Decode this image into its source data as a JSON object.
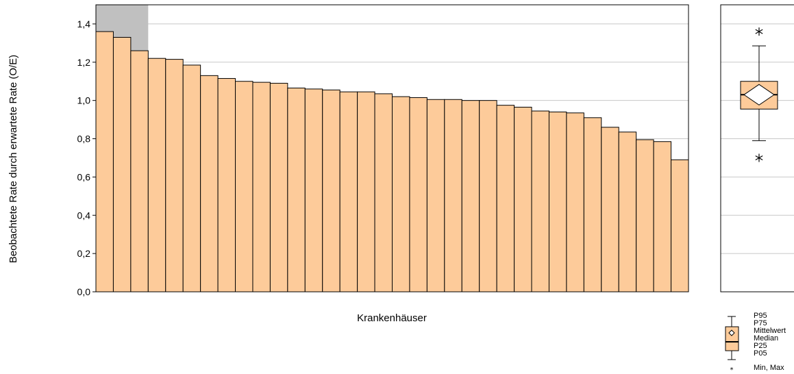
{
  "chart_data": [
    {
      "type": "bar",
      "xlabel": "Krankenhäuser",
      "ylabel": "Beobachtete Rate durch erwartete Rate (O/E)",
      "ylim": [
        0,
        1.5
      ],
      "yticks": [
        "0,0",
        "0,2",
        "0,4",
        "0,6",
        "0,8",
        "1,0",
        "1,2",
        "1,4"
      ],
      "grid": true,
      "values": [
        1.36,
        1.33,
        1.26,
        1.22,
        1.215,
        1.185,
        1.13,
        1.115,
        1.1,
        1.095,
        1.09,
        1.065,
        1.06,
        1.055,
        1.045,
        1.045,
        1.035,
        1.02,
        1.015,
        1.005,
        1.005,
        1.0,
        1.0,
        0.975,
        0.965,
        0.945,
        0.94,
        0.935,
        0.91,
        0.86,
        0.835,
        0.795,
        0.785,
        0.69
      ],
      "highlighted_range": {
        "from_index": 0,
        "to_index": 2,
        "note": "grey shading above first three bars"
      },
      "bar_color": "#FDCB9A",
      "highlight_color": "#C0C0C0"
    },
    {
      "type": "boxplot",
      "ylim": [
        0,
        1.5
      ],
      "min": 0.7,
      "p05": 0.79,
      "p25": 0.955,
      "median": 1.03,
      "mean": 1.03,
      "p75": 1.1,
      "p95": 1.285,
      "max": 1.36,
      "box_color": "#FDCB9A"
    }
  ],
  "legend": {
    "items": [
      "P95",
      "P75",
      "Mittelwert",
      "Median",
      "P25",
      "P05",
      "Min, Max"
    ]
  }
}
